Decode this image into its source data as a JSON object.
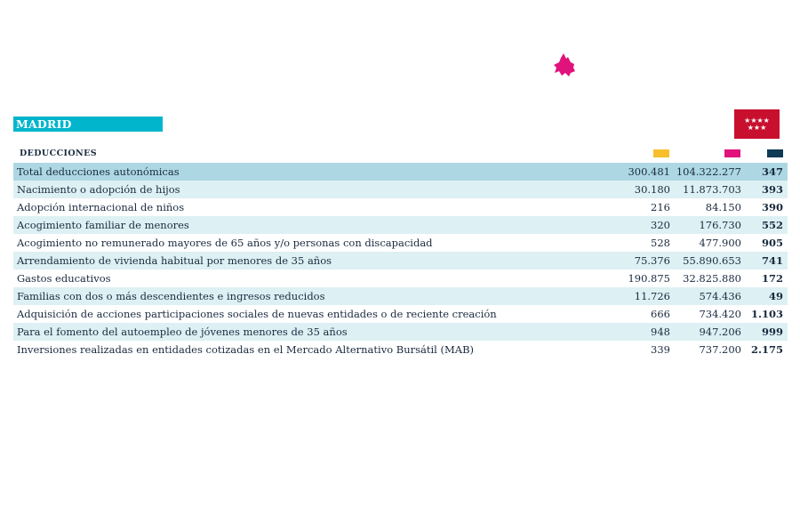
{
  "region": {
    "name": "MADRID",
    "map_icon": "madrid-region-map-icon",
    "flag_icon": "madrid-flag-icon"
  },
  "table": {
    "header": "DEDUCCIONES",
    "legend_colors": [
      "#f7bf2b",
      "#e0137d",
      "#0f3a55"
    ],
    "rows": [
      {
        "name": "Total deducciones autonómicas",
        "v1": "300.481",
        "v2": "104.322.277",
        "v3": "347"
      },
      {
        "name": "Nacimiento o adopción de hijos",
        "v1": "30.180",
        "v2": "11.873.703",
        "v3": "393"
      },
      {
        "name": "Adopción internacional de niños",
        "v1": "216",
        "v2": "84.150",
        "v3": "390"
      },
      {
        "name": "Acogimiento familiar de menores",
        "v1": "320",
        "v2": "176.730",
        "v3": "552"
      },
      {
        "name": "Acogimiento no remunerado mayores de 65 años y/o personas con discapacidad",
        "v1": "528",
        "v2": "477.900",
        "v3": "905"
      },
      {
        "name": "Arrendamiento de vivienda habitual por menores de 35 años",
        "v1": "75.376",
        "v2": "55.890.653",
        "v3": "741"
      },
      {
        "name": "Gastos educativos",
        "v1": "190.875",
        "v2": "32.825.880",
        "v3": "172"
      },
      {
        "name": "Familias con dos o más descendientes e ingresos reducidos",
        "v1": "11.726",
        "v2": "574.436",
        "v3": "49"
      },
      {
        "name": "Adquisición de acciones participaciones sociales de nuevas entidades o de reciente creación",
        "v1": "666",
        "v2": "734.420",
        "v3": "1.103"
      },
      {
        "name": "Para el fomento del autoempleo de jóvenes menores de 35 años",
        "v1": "948",
        "v2": "947.206",
        "v3": "999"
      },
      {
        "name": "Inversiones realizadas en entidades cotizadas en el Mercado Alternativo Bursátil (MAB)",
        "v1": "339",
        "v2": "737.200",
        "v3": "2.175"
      }
    ]
  }
}
